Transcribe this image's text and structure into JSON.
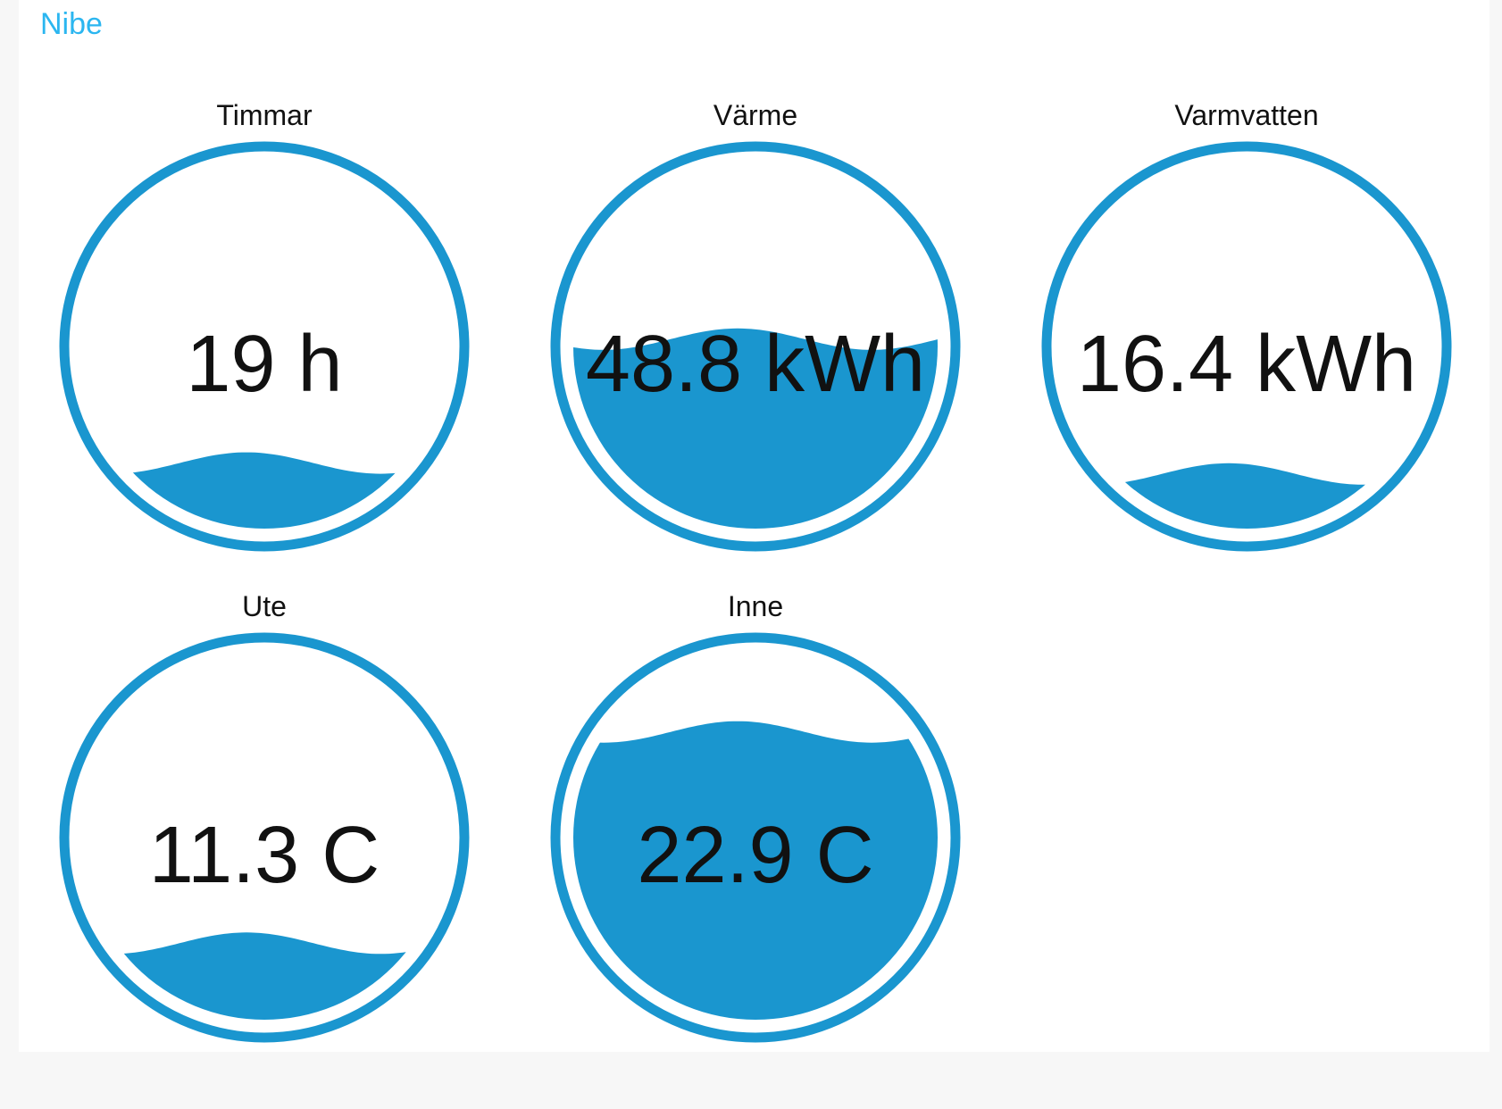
{
  "app": {
    "title": "Nibe"
  },
  "colors": {
    "accent": "#2bb6f0",
    "gauge_blue": "#1a96cf",
    "text": "#111111",
    "panel_bg": "#ffffff",
    "page_bg": "#f7f7f7"
  },
  "gauges": [
    {
      "label": "Timmar",
      "value": "19 h",
      "fill_fraction": 0.18
    },
    {
      "label": "Värme",
      "value": "48.8 kWh",
      "fill_fraction": 0.52
    },
    {
      "label": "Varmvatten",
      "value": "16.4 kWh",
      "fill_fraction": 0.15
    },
    {
      "label": "Ute",
      "value": "11.3 C",
      "fill_fraction": 0.21
    },
    {
      "label": "Inne",
      "value": "22.9 C",
      "fill_fraction": 0.79
    }
  ]
}
